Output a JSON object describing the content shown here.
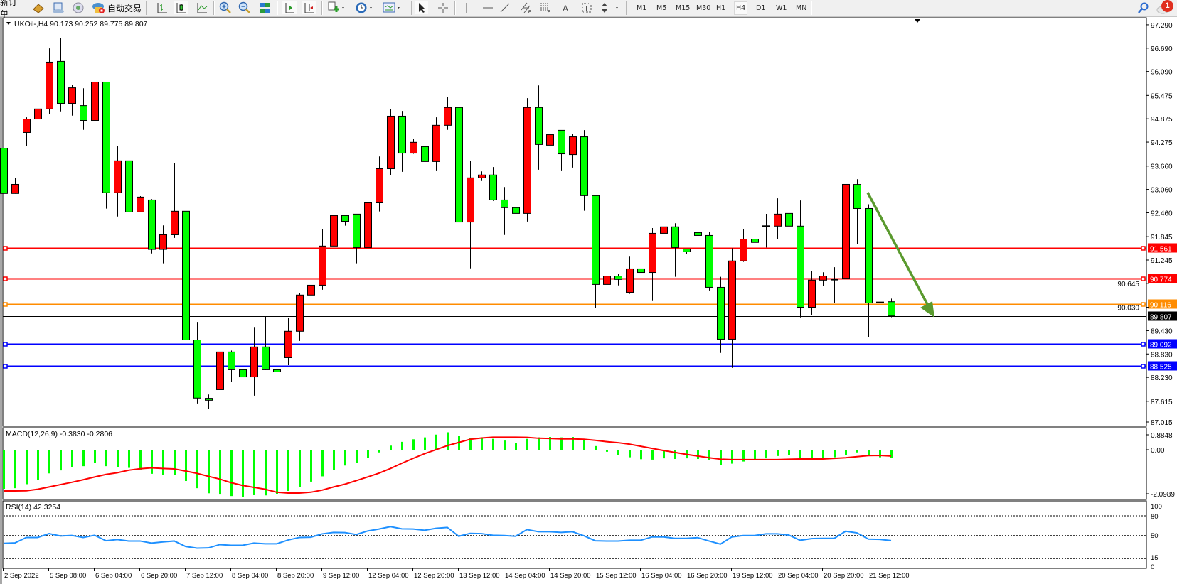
{
  "toolbar": {
    "new_order_label": "新订单",
    "auto_trading_label": "自动交易",
    "timeframes": [
      "M1",
      "M5",
      "M15",
      "M30",
      "H1",
      "H4",
      "D1",
      "W1",
      "MN"
    ],
    "active_timeframe": "H4",
    "notification_count": "1",
    "icons": [
      "new-order-icon",
      "market-watch-icon",
      "data-window-icon",
      "signals-icon",
      "auto-trading-icon",
      "bar-chart-icon",
      "candlestick-icon",
      "line-chart-icon",
      "zoom-in-icon",
      "zoom-out-icon",
      "tile-windows-icon",
      "auto-scroll-icon",
      "chart-shift-icon",
      "indicators-icon",
      "periods-icon",
      "templates-icon",
      "cursor-icon",
      "crosshair-icon",
      "vertical-line-icon",
      "horizontal-line-icon",
      "trendline-icon",
      "equidistant-channel-icon",
      "fibonacci-icon",
      "text-icon",
      "text-label-icon",
      "arrows-icon",
      "search-icon",
      "notification-icon"
    ]
  },
  "chart": {
    "symbol_header": "UKOil-,H4  90.173 90.252 89.775 89.807",
    "colors": {
      "bull": "#ff0000",
      "bear": "#00ff00",
      "outline": "#000000",
      "arrow": "#5a9a2e"
    },
    "price_axis_labels": [
      "97.290",
      "96.690",
      "96.090",
      "95.475",
      "94.875",
      "94.275",
      "93.660",
      "93.060",
      "92.460",
      "91.845",
      "91.245",
      "90.645",
      "90.030",
      "89.430",
      "88.830",
      "88.230",
      "87.615",
      "87.015"
    ],
    "levels": [
      {
        "price": "91.561",
        "color": "#ff0000"
      },
      {
        "price": "90.774",
        "color": "#ff0000"
      },
      {
        "price": "90.116",
        "color": "#ff8c00"
      },
      {
        "price": "89.092",
        "color": "#0000ff"
      },
      {
        "price": "88.525",
        "color": "#0000ff"
      }
    ],
    "bid": {
      "price": "89.807",
      "color": "#000000"
    }
  },
  "chart_data": {
    "type": "candlestick",
    "symbol": "UKOil-",
    "timeframe": "H4",
    "ohlc_order": [
      "open",
      "high",
      "low",
      "close"
    ],
    "ylim": [
      87.015,
      97.29
    ],
    "candles": [
      [
        94.12,
        94.665,
        92.764,
        92.956
      ],
      [
        92.956,
        93.363,
        92.95,
        93.19
      ],
      [
        94.523,
        94.912,
        94.171,
        94.869
      ],
      [
        94.869,
        95.695,
        94.85,
        95.128
      ],
      [
        95.128,
        96.683,
        94.992,
        96.331
      ],
      [
        96.35,
        96.942,
        95.066,
        95.27
      ],
      [
        95.27,
        95.751,
        94.955,
        95.671
      ],
      [
        95.214,
        95.658,
        94.591,
        94.832
      ],
      [
        94.832,
        95.881,
        94.776,
        95.819
      ],
      [
        95.819,
        95.82,
        92.567,
        92.974
      ],
      [
        92.974,
        94.184,
        92.363,
        93.795
      ],
      [
        93.795,
        93.943,
        92.252,
        92.48
      ],
      [
        92.48,
        92.888,
        92.48,
        92.863
      ],
      [
        92.789,
        92.81,
        91.413,
        91.518
      ],
      [
        91.518,
        92.135,
        91.16,
        91.894
      ],
      [
        91.894,
        93.745,
        91.814,
        92.499
      ],
      [
        92.499,
        92.925,
        88.895,
        89.191
      ],
      [
        89.191,
        89.654,
        87.56,
        87.698
      ],
      [
        87.692,
        87.79,
        87.41,
        87.642
      ],
      [
        87.914,
        88.969,
        87.833,
        88.883
      ],
      [
        88.883,
        88.92,
        88.111,
        88.426
      ],
      [
        88.426,
        88.574,
        87.24,
        88.241
      ],
      [
        88.241,
        89.525,
        87.76,
        89.012
      ],
      [
        89.012,
        89.802,
        88.42,
        88.426
      ],
      [
        88.426,
        88.617,
        88.148,
        88.37
      ],
      [
        88.735,
        89.765,
        88.543,
        89.414
      ],
      [
        89.414,
        90.401,
        89.167,
        90.345
      ],
      [
        90.345,
        90.968,
        89.95,
        90.598
      ],
      [
        90.598,
        92.03,
        90.481,
        91.604
      ],
      [
        91.604,
        93.066,
        91.505,
        92.388
      ],
      [
        92.388,
        92.39,
        92.129,
        92.24
      ],
      [
        92.425,
        92.43,
        91.16,
        91.567
      ],
      [
        91.567,
        93.122,
        91.339,
        92.715
      ],
      [
        92.715,
        93.906,
        92.493,
        93.591
      ],
      [
        93.591,
        95.115,
        93.425,
        94.943
      ],
      [
        94.943,
        95.078,
        93.511,
        93.992
      ],
      [
        93.992,
        94.363,
        93.974,
        94.27
      ],
      [
        94.159,
        94.276,
        92.69,
        93.776
      ],
      [
        93.776,
        94.912,
        93.548,
        94.708
      ],
      [
        94.708,
        95.442,
        94.591,
        95.165
      ],
      [
        95.165,
        95.461,
        91.758,
        92.221
      ],
      [
        92.221,
        93.783,
        91.03,
        93.357
      ],
      [
        93.357,
        93.523,
        93.276,
        93.431
      ],
      [
        93.431,
        93.634,
        92.764,
        92.789
      ],
      [
        92.789,
        93.122,
        91.888,
        92.591
      ],
      [
        92.591,
        93.857,
        92.215,
        92.443
      ],
      [
        92.443,
        95.405,
        92.234,
        95.165
      ],
      [
        95.165,
        95.732,
        93.566,
        94.214
      ],
      [
        94.196,
        94.585,
        94.097,
        94.467
      ],
      [
        94.579,
        94.58,
        93.548,
        93.974
      ],
      [
        93.955,
        94.492,
        93.622,
        94.412
      ],
      [
        94.412,
        94.585,
        92.511,
        92.9
      ],
      [
        92.9,
        92.925,
        90.006,
        90.617
      ],
      [
        90.617,
        91.586,
        90.463,
        90.833
      ],
      [
        90.833,
        90.895,
        90.592,
        90.746
      ],
      [
        90.413,
        91.333,
        90.376,
        91.018
      ],
      [
        91.018,
        91.919,
        90.703,
        90.925
      ],
      [
        90.925,
        92.067,
        90.209,
        91.931
      ],
      [
        91.931,
        92.61,
        90.901,
        92.098
      ],
      [
        92.098,
        92.19,
        90.814,
        91.567
      ],
      [
        91.53,
        91.53,
        91.394,
        91.456
      ],
      [
        91.95,
        92.542,
        91.851,
        91.876
      ],
      [
        91.876,
        91.974,
        90.463,
        90.543
      ],
      [
        90.543,
        90.814,
        88.858,
        89.21
      ],
      [
        89.21,
        91.549,
        88.475,
        91.222
      ],
      [
        91.222,
        92.048,
        91.197,
        91.783
      ],
      [
        91.783,
        91.919,
        91.635,
        91.697
      ],
      [
        92.12,
        92.431,
        91.567,
        92.125
      ],
      [
        92.116,
        92.832,
        91.789,
        92.425
      ],
      [
        92.443,
        92.999,
        91.672,
        92.116
      ],
      [
        92.116,
        92.777,
        89.771,
        90.031
      ],
      [
        90.031,
        90.968,
        89.826,
        90.728
      ],
      [
        90.728,
        90.931,
        90.573,
        90.833
      ],
      [
        90.745,
        91.061,
        90.136,
        90.75
      ],
      [
        90.777,
        93.456,
        90.648,
        93.19
      ],
      [
        93.188,
        93.321,
        91.652,
        92.569
      ],
      [
        92.569,
        92.678,
        89.266,
        90.14
      ],
      [
        90.158,
        91.154,
        89.284,
        90.165
      ],
      [
        90.173,
        90.252,
        89.775,
        89.807
      ]
    ],
    "time_labels": [
      "2 Sep 2022",
      "5 Sep 08:00",
      "6 Sep 04:00",
      "6 Sep 20:00",
      "7 Sep 12:00",
      "8 Sep 04:00",
      "8 Sep 20:00",
      "9 Sep 12:00",
      "12 Sep 04:00",
      "12 Sep 20:00",
      "13 Sep 12:00",
      "14 Sep 04:00",
      "14 Sep 20:00",
      "15 Sep 12:00",
      "16 Sep 04:00",
      "16 Sep 20:00",
      "19 Sep 12:00",
      "20 Sep 04:00",
      "20 Sep 20:00",
      "21 Sep 12:00"
    ],
    "macd": {
      "label": "MACD(12,26,9) -0.3830 -0.2806",
      "axis_labels": [
        "0.8848",
        "0.00",
        "-2.0989"
      ],
      "ylim": [
        -2.0989,
        0.8848
      ],
      "histogram_color": "#00ff00",
      "signal_color": "#ff0000",
      "main": [
        -1.83,
        -1.8,
        -1.61,
        -1.41,
        -1.1,
        -0.96,
        -0.82,
        -0.76,
        -0.62,
        -0.76,
        -0.8,
        -0.84,
        -0.93,
        -1.12,
        -1.19,
        -1.19,
        -1.46,
        -1.8,
        -2.04,
        -2.1,
        -2.17,
        -2.2,
        -2.13,
        -2.14,
        -2.08,
        -1.93,
        -1.74,
        -1.49,
        -1.24,
        -0.93,
        -0.73,
        -0.6,
        -0.36,
        -0.11,
        0.21,
        0.39,
        0.51,
        0.6,
        0.73,
        0.84,
        0.67,
        0.58,
        0.58,
        0.53,
        0.45,
        0.34,
        0.53,
        0.6,
        0.62,
        0.6,
        0.62,
        0.48,
        0.19,
        -0.08,
        -0.25,
        -0.34,
        -0.43,
        -0.45,
        -0.39,
        -0.42,
        -0.39,
        -0.42,
        -0.48,
        -0.69,
        -0.64,
        -0.54,
        -0.45,
        -0.39,
        -0.28,
        -0.22,
        -0.39,
        -0.39,
        -0.39,
        -0.34,
        -0.22,
        -0.11,
        -0.28,
        -0.34,
        -0.383
      ],
      "signal": [
        -1.93,
        -1.93,
        -1.92,
        -1.85,
        -1.74,
        -1.63,
        -1.52,
        -1.4,
        -1.27,
        -1.15,
        -1.07,
        -0.95,
        -0.88,
        -0.84,
        -0.87,
        -0.89,
        -0.99,
        -1.1,
        -1.24,
        -1.37,
        -1.54,
        -1.67,
        -1.76,
        -1.85,
        -1.99,
        -2.03,
        -2.03,
        -1.99,
        -1.89,
        -1.74,
        -1.61,
        -1.44,
        -1.27,
        -1.09,
        -0.87,
        -0.62,
        -0.39,
        -0.17,
        0.02,
        0.21,
        0.36,
        0.51,
        0.57,
        0.61,
        0.61,
        0.61,
        0.6,
        0.56,
        0.55,
        0.53,
        0.53,
        0.51,
        0.46,
        0.4,
        0.35,
        0.28,
        0.18,
        0.08,
        -0.02,
        -0.11,
        -0.2,
        -0.28,
        -0.36,
        -0.43,
        -0.45,
        -0.45,
        -0.45,
        -0.45,
        -0.45,
        -0.43,
        -0.42,
        -0.42,
        -0.42,
        -0.39,
        -0.36,
        -0.31,
        -0.26,
        -0.25,
        -0.2806
      ]
    },
    "rsi": {
      "label": "RSI(14) 42.3254",
      "axis_labels": [
        "100",
        "80",
        "50",
        "15",
        "0"
      ],
      "levels": [
        80,
        50,
        15
      ],
      "ylim": [
        0,
        100
      ],
      "color": "#1e90ff",
      "values": [
        38.1,
        38.8,
        47.1,
        47.1,
        52.9,
        49.3,
        50.1,
        47.1,
        50.4,
        42.1,
        43.9,
        41.7,
        41.7,
        38.5,
        40.3,
        41.7,
        33.4,
        30.9,
        31.2,
        36.3,
        35.2,
        35.2,
        38.5,
        37.4,
        37.4,
        43.2,
        47.1,
        47.5,
        52.5,
        54.7,
        54.4,
        51.5,
        56.9,
        59.8,
        63.4,
        60.1,
        59.8,
        58.0,
        60.9,
        62.3,
        48.9,
        53.3,
        52.9,
        50.4,
        50.0,
        48.9,
        59.0,
        55.8,
        55.8,
        54.7,
        55.8,
        49.7,
        42.1,
        41.7,
        41.7,
        42.8,
        42.8,
        47.9,
        47.9,
        45.7,
        45.7,
        46.8,
        41.7,
        37.0,
        47.9,
        50.0,
        50.0,
        52.5,
        52.5,
        50.8,
        42.8,
        45.3,
        45.7,
        45.7,
        56.5,
        54.0,
        44.6,
        44.2,
        42.3254
      ]
    }
  }
}
